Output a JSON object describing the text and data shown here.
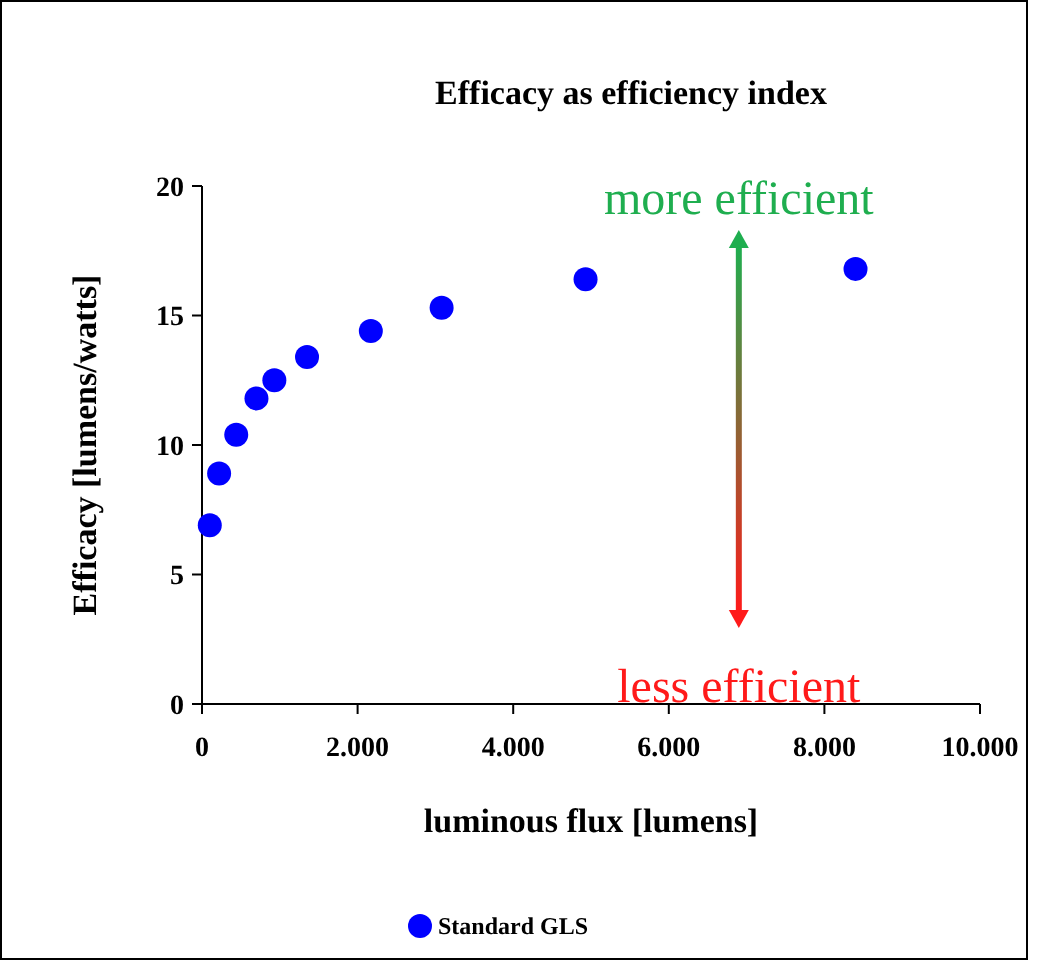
{
  "chart_data": {
    "type": "scatter",
    "title": "Efficacy as efficiency index",
    "xlabel": "luminous flux [lumens]",
    "ylabel": "Efficacy [lumens/watts]",
    "x": [
      100,
      220,
      440,
      700,
      930,
      1350,
      2170,
      3080,
      4930,
      8400
    ],
    "series": [
      {
        "name": "Standard GLS",
        "color": "#0000ff",
        "values": [
          6.9,
          8.9,
          10.4,
          11.8,
          12.5,
          13.4,
          14.4,
          15.3,
          16.4,
          16.8
        ]
      }
    ],
    "xlim": [
      0,
      10000
    ],
    "xticks": [
      0,
      {
        "value": 2000,
        "label": "2.000"
      },
      {
        "value": 4000,
        "label": "4.000"
      },
      {
        "value": 6000,
        "label": "6.000"
      },
      {
        "value": 8000,
        "label": "8.000"
      },
      {
        "value": 10000,
        "label": "10.000"
      }
    ],
    "ylim": [
      0,
      20
    ],
    "yticks": [
      0,
      5,
      10,
      15,
      20
    ],
    "grid": false,
    "legend": "bottom",
    "marker": "circle",
    "annotations": [
      "more efficient",
      "less efficient"
    ]
  }
}
